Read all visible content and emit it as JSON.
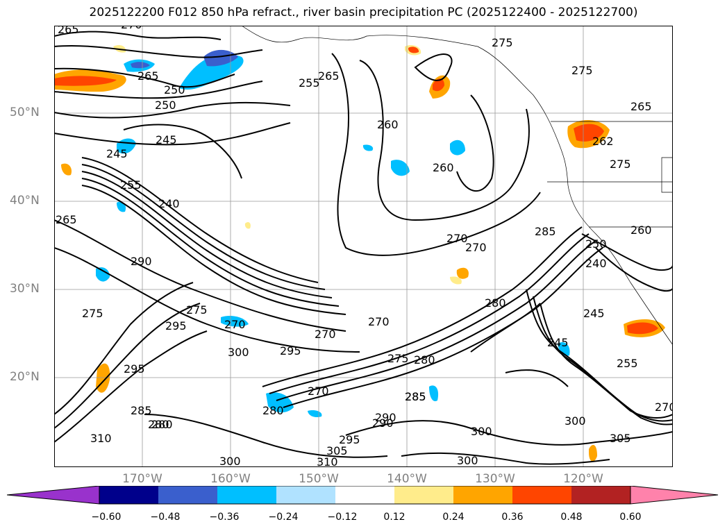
{
  "title": "2025122200 F012 850 hPa refract., river basin precipitation PC (2025122400 - 2025122700)",
  "map": {
    "lat_labels": [
      "50°N",
      "40°N",
      "30°N",
      "20°N"
    ],
    "lon_labels": [
      "170°W",
      "160°W",
      "150°W",
      "140°W",
      "130°W",
      "120°W"
    ],
    "contour_labels": [
      "265",
      "270",
      "275",
      "275",
      "265",
      "250",
      "250",
      "255",
      "265",
      "260",
      "260",
      "245",
      "245",
      "255",
      "240",
      "265",
      "290",
      "270",
      "270",
      "270",
      "285",
      "280",
      "275",
      "295",
      "270",
      "300",
      "295",
      "270",
      "275",
      "280",
      "285",
      "250",
      "240",
      "245",
      "245",
      "255",
      "275",
      "295",
      "280",
      "270",
      "285",
      "290",
      "295",
      "305",
      "310",
      "300",
      "300",
      "300",
      "305",
      "310",
      "280",
      "285",
      "300",
      "290",
      "280",
      "270",
      "265",
      "275",
      "262",
      "260"
    ]
  },
  "colorbar": {
    "ticks": [
      "−0.60",
      "−0.48",
      "−0.36",
      "−0.24",
      "−0.12",
      "0.12",
      "0.24",
      "0.36",
      "0.48",
      "0.60"
    ],
    "colors": [
      "#9932cc",
      "#00008b",
      "#3a5fcd",
      "#00bfff",
      "#b0e2ff",
      "#ffffff",
      "#ffec8b",
      "#ffa500",
      "#ff4500",
      "#b22222",
      "#ff82ab"
    ]
  }
}
